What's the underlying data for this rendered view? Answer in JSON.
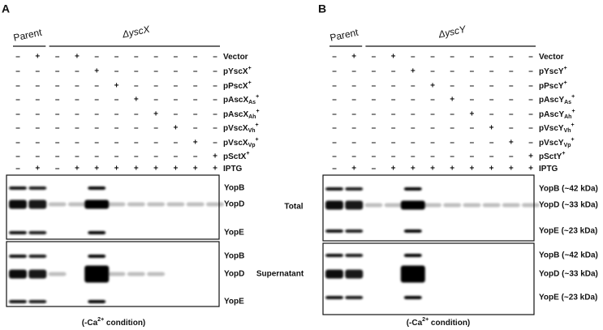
{
  "panels": [
    {
      "label": "A",
      "groups": [
        "Parent",
        "ΔyscX"
      ],
      "rows": [
        {
          "label": {
            "base": "Vector"
          },
          "signs": [
            "–",
            "+",
            "–",
            "+",
            "–",
            "–",
            "–",
            "–",
            "–",
            "–",
            "–"
          ]
        },
        {
          "label": {
            "base": "pYscX",
            "sup": "+"
          },
          "signs": [
            "–",
            "–",
            "–",
            "–",
            "+",
            "–",
            "–",
            "–",
            "–",
            "–",
            "–"
          ]
        },
        {
          "label": {
            "base": "pPscX",
            "sup": "+"
          },
          "signs": [
            "–",
            "–",
            "–",
            "–",
            "–",
            "+",
            "–",
            "–",
            "–",
            "–",
            "–"
          ]
        },
        {
          "label": {
            "base": "pAscX",
            "sub": "As",
            "sup": "+"
          },
          "signs": [
            "–",
            "–",
            "–",
            "–",
            "–",
            "–",
            "+",
            "–",
            "–",
            "–",
            "–"
          ]
        },
        {
          "label": {
            "base": "pAscX",
            "sub": "Ah",
            "sup": "+"
          },
          "signs": [
            "–",
            "–",
            "–",
            "–",
            "–",
            "–",
            "–",
            "+",
            "–",
            "–",
            "–"
          ]
        },
        {
          "label": {
            "base": "pVscX",
            "sub": "Vh",
            "sup": "+"
          },
          "signs": [
            "–",
            "–",
            "–",
            "–",
            "–",
            "–",
            "–",
            "–",
            "+",
            "–",
            "–"
          ]
        },
        {
          "label": {
            "base": "pVscX",
            "sub": "Vp",
            "sup": "+"
          },
          "signs": [
            "–",
            "–",
            "–",
            "–",
            "–",
            "–",
            "–",
            "–",
            "–",
            "+",
            "–"
          ]
        },
        {
          "label": {
            "base": "pSctX",
            "sup": "+"
          },
          "signs": [
            "–",
            "–",
            "–",
            "–",
            "–",
            "–",
            "–",
            "–",
            "–",
            "–",
            "+"
          ]
        },
        {
          "label": {
            "base": "IPTG"
          },
          "signs": [
            "–",
            "+",
            "–",
            "+",
            "+",
            "+",
            "+",
            "+",
            "+",
            "+",
            "+"
          ]
        }
      ],
      "blots": [
        {
          "bands": [
            "YopB",
            "YopD",
            "YopE"
          ]
        },
        {
          "bands": [
            "YopB",
            "YopD",
            "YopE"
          ]
        }
      ],
      "condition": {
        "base": "(-Ca",
        "sup": "2+",
        "tail": " condition)"
      }
    },
    {
      "label": "B",
      "groups": [
        "Parent",
        "ΔyscY"
      ],
      "rows": [
        {
          "label": {
            "base": "Vector"
          },
          "signs": [
            "–",
            "+",
            "–",
            "+",
            "–",
            "–",
            "–",
            "–",
            "–",
            "–",
            "–"
          ]
        },
        {
          "label": {
            "base": "pYscY",
            "sup": "+"
          },
          "signs": [
            "–",
            "–",
            "–",
            "–",
            "+",
            "–",
            "–",
            "–",
            "–",
            "–",
            "–"
          ]
        },
        {
          "label": {
            "base": "pPscY",
            "sup": "+"
          },
          "signs": [
            "–",
            "–",
            "–",
            "–",
            "–",
            "+",
            "–",
            "–",
            "–",
            "–",
            "–"
          ]
        },
        {
          "label": {
            "base": "pAscY",
            "sub": "As",
            "sup": "+"
          },
          "signs": [
            "–",
            "–",
            "–",
            "–",
            "–",
            "–",
            "+",
            "–",
            "–",
            "–",
            "–"
          ]
        },
        {
          "label": {
            "base": "pAscY",
            "sub": "Ah",
            "sup": "+"
          },
          "signs": [
            "–",
            "–",
            "–",
            "–",
            "–",
            "–",
            "–",
            "+",
            "–",
            "–",
            "–"
          ]
        },
        {
          "label": {
            "base": "pVscY",
            "sub": "Vh",
            "sup": "+"
          },
          "signs": [
            "–",
            "–",
            "–",
            "–",
            "–",
            "–",
            "–",
            "–",
            "+",
            "–",
            "–"
          ]
        },
        {
          "label": {
            "base": "pVscY",
            "sub": "Vp",
            "sup": "+"
          },
          "signs": [
            "–",
            "–",
            "–",
            "–",
            "–",
            "–",
            "–",
            "–",
            "–",
            "+",
            "–"
          ]
        },
        {
          "label": {
            "base": "pSctY",
            "sup": "+"
          },
          "signs": [
            "–",
            "–",
            "–",
            "–",
            "–",
            "–",
            "–",
            "–",
            "–",
            "–",
            "+"
          ]
        },
        {
          "label": {
            "base": "IPTG"
          },
          "signs": [
            "–",
            "+",
            "–",
            "+",
            "+",
            "+",
            "+",
            "+",
            "+",
            "+",
            "+"
          ]
        }
      ],
      "blots": [
        {
          "bands": [
            "YopB (~42 kDa)",
            "YopD (~33 kDa)",
            "YopE (~23 kDa)"
          ]
        },
        {
          "bands": [
            "YopB (~42 kDa)",
            "YopD (~33 kDa)",
            "YopE (~23 kDa)"
          ]
        }
      ],
      "condition": {
        "base": "(-Ca",
        "sup": "2+",
        "tail": " condition)"
      }
    }
  ],
  "fractions": [
    "Total",
    "Supernatant"
  ]
}
